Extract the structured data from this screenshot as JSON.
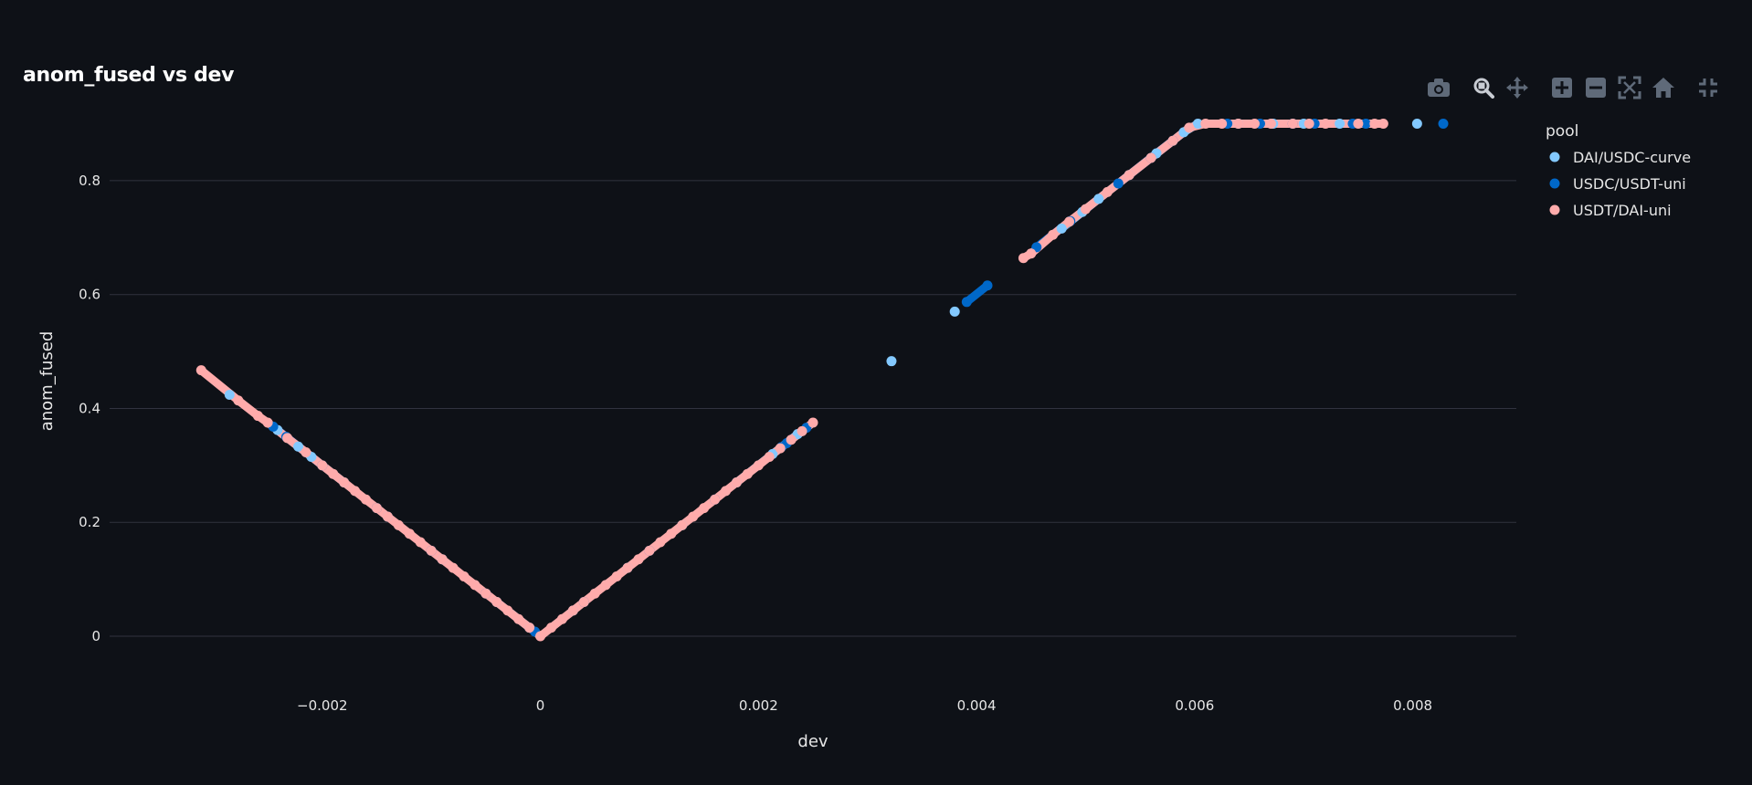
{
  "title": "anom_fused vs dev",
  "modebar": {
    "buttons": [
      {
        "icon": "camera-icon",
        "name": "download-plot-button"
      },
      {
        "icon": "zoom-icon",
        "name": "zoom-button"
      },
      {
        "icon": "pan-icon",
        "name": "pan-button"
      },
      {
        "icon": "zoom-in-icon",
        "name": "zoom-in-button"
      },
      {
        "icon": "zoom-out-icon",
        "name": "zoom-out-button"
      },
      {
        "icon": "autoscale-icon",
        "name": "autoscale-button"
      },
      {
        "icon": "home-icon",
        "name": "reset-axes-button"
      },
      {
        "icon": "fullscreen-exit-icon",
        "name": "fullscreen-button"
      }
    ],
    "icon_color": "#5f6a79",
    "active_icon_color": "#c8ccd3"
  },
  "chart_data": {
    "type": "scatter",
    "title": "anom_fused vs dev",
    "xlabel": "dev",
    "ylabel": "anom_fused",
    "xlim": [
      -0.00395,
      0.00895
    ],
    "ylim": [
      -0.085,
      0.965
    ],
    "xticks": [
      -0.002,
      0,
      0.002,
      0.004,
      0.006,
      0.008
    ],
    "xtick_labels": [
      "−0.002",
      "0",
      "0.002",
      "0.004",
      "0.006",
      "0.008"
    ],
    "yticks": [
      0,
      0.2,
      0.4,
      0.6,
      0.8
    ],
    "ytick_labels": [
      "0",
      "0.2",
      "0.4",
      "0.6",
      "0.8"
    ],
    "grid": "horizontal",
    "legend": {
      "title": "pool",
      "placement": "top-right"
    },
    "series": [
      {
        "name": "DAI/USDC-curve",
        "color": "#83c9ff",
        "x": [
          -0.00285,
          -0.00241,
          -0.00222,
          -0.0021,
          -0.0018,
          -0.0014,
          -0.0009,
          -0.0004,
          -0.0001,
          0.0003,
          0.0008,
          0.0013,
          0.0018,
          0.00213,
          0.00236,
          0.00322,
          0.0038,
          0.00478,
          0.00497,
          0.00512,
          0.0054,
          0.00565,
          0.0059,
          0.00603,
          0.0064,
          0.00672,
          0.007,
          0.00733,
          0.00804
        ],
        "y": [
          0.424,
          0.362,
          0.333,
          0.315,
          0.27,
          0.21,
          0.135,
          0.06,
          0.015,
          0.045,
          0.12,
          0.195,
          0.27,
          0.32,
          0.355,
          0.483,
          0.57,
          0.716,
          0.745,
          0.768,
          0.81,
          0.848,
          0.885,
          0.9,
          0.9,
          0.9,
          0.9,
          0.9,
          0.9
        ]
      },
      {
        "name": "USDC/USDT-uni",
        "color": "#0068c9",
        "x": [
          -0.00245,
          -0.00233,
          -0.002,
          -0.0015,
          -0.001,
          -0.0005,
          -5e-05,
          0.0004,
          0.001,
          0.0016,
          0.00221,
          0.00226,
          0.00244,
          0.00391,
          0.0041,
          0.00455,
          0.00486,
          0.0053,
          0.0056,
          0.0058,
          0.0063,
          0.0066,
          0.0069,
          0.0071,
          0.00745,
          0.00757,
          0.00828
        ],
        "y": [
          0.368,
          0.35,
          0.3,
          0.225,
          0.15,
          0.075,
          0.008,
          0.06,
          0.15,
          0.24,
          0.332,
          0.339,
          0.366,
          0.587,
          0.616,
          0.683,
          0.729,
          0.795,
          0.84,
          0.87,
          0.9,
          0.9,
          0.9,
          0.9,
          0.9,
          0.9,
          0.9
        ]
      },
      {
        "name": "USDT/DAI-uni",
        "color": "#ffabab",
        "x": [
          -0.00311,
          -0.00277,
          -0.00259,
          -0.0025,
          -0.00232,
          -0.00215,
          -0.002,
          -0.0019,
          -0.0018,
          -0.0017,
          -0.0016,
          -0.0015,
          -0.0014,
          -0.0013,
          -0.0012,
          -0.0011,
          -0.001,
          -0.0009,
          -0.0008,
          -0.0007,
          -0.0006,
          -0.0005,
          -0.0004,
          -0.0003,
          -0.0002,
          -0.0001,
          0.0,
          0.0001,
          0.0002,
          0.0003,
          0.0004,
          0.0005,
          0.0006,
          0.0007,
          0.0008,
          0.0009,
          0.001,
          0.0011,
          0.0012,
          0.0013,
          0.0014,
          0.0015,
          0.0016,
          0.0017,
          0.0018,
          0.0019,
          0.002,
          0.0021,
          0.0022,
          0.0023,
          0.0024,
          0.0025,
          0.00443,
          0.0045,
          0.0047,
          0.00485,
          0.005,
          0.0052,
          0.0054,
          0.0056,
          0.0058,
          0.00595,
          0.0061,
          0.00625,
          0.0064,
          0.00655,
          0.0067,
          0.0069,
          0.00705,
          0.0072,
          0.0075,
          0.00765,
          0.00773
        ],
        "y": [
          0.467,
          0.414,
          0.387,
          0.375,
          0.348,
          0.323,
          0.3,
          0.285,
          0.27,
          0.255,
          0.24,
          0.225,
          0.21,
          0.195,
          0.18,
          0.165,
          0.15,
          0.135,
          0.12,
          0.105,
          0.09,
          0.075,
          0.06,
          0.045,
          0.03,
          0.015,
          0.0,
          0.015,
          0.03,
          0.045,
          0.06,
          0.075,
          0.09,
          0.105,
          0.12,
          0.135,
          0.15,
          0.165,
          0.18,
          0.195,
          0.21,
          0.225,
          0.24,
          0.255,
          0.27,
          0.285,
          0.3,
          0.315,
          0.33,
          0.345,
          0.36,
          0.375,
          0.664,
          0.672,
          0.705,
          0.728,
          0.75,
          0.78,
          0.81,
          0.84,
          0.87,
          0.893,
          0.9,
          0.9,
          0.9,
          0.9,
          0.9,
          0.9,
          0.9,
          0.9,
          0.9,
          0.9,
          0.9
        ]
      }
    ]
  }
}
